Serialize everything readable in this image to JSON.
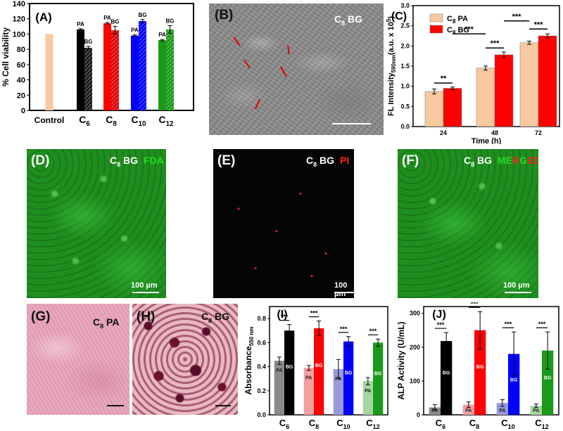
{
  "chart_data": [
    {
      "panel": "(A)",
      "type": "bar",
      "ylabel": "% Cell viability",
      "ylim": [
        0,
        140
      ],
      "yticks": [
        0,
        20,
        40,
        60,
        80,
        100,
        120,
        140
      ],
      "groups": [
        {
          "label": "Control",
          "bars": [
            {
              "value": 100,
              "err": 0,
              "label": "",
              "color": "#f8c9a0",
              "hatch": false
            }
          ]
        },
        {
          "label": "C6",
          "base": "C",
          "sub": "6",
          "bars": [
            {
              "value": 106,
              "err": 1,
              "label": "PA",
              "color": "#000000",
              "hatch": false
            },
            {
              "value": 82,
              "err": 2,
              "label": "BG",
              "color": "#1a1a1a",
              "hatch": true
            }
          ]
        },
        {
          "label": "C8",
          "base": "C",
          "sub": "8",
          "bars": [
            {
              "value": 114,
              "err": 1,
              "label": "PA",
              "color": "#ff0000",
              "hatch": false
            },
            {
              "value": 105,
              "err": 5,
              "label": "BG",
              "color": "#e00000",
              "hatch": true
            }
          ]
        },
        {
          "label": "C10",
          "base": "C",
          "sub": "10",
          "bars": [
            {
              "value": 98,
              "err": 1,
              "label": "PA",
              "color": "#0000ff",
              "hatch": false
            },
            {
              "value": 117,
              "err": 2,
              "label": "BG",
              "color": "#0000ff",
              "hatch": true
            }
          ]
        },
        {
          "label": "C12",
          "base": "C",
          "sub": "12",
          "bars": [
            {
              "value": 92,
              "err": 1,
              "label": "PA",
              "color": "#1a9a1a",
              "hatch": false
            },
            {
              "value": 106,
              "err": 5,
              "label": "BG",
              "color": "#1a9a1a",
              "hatch": true
            }
          ]
        }
      ]
    },
    {
      "panel": "(C)",
      "type": "bar",
      "ylabel_main": "FL Intensity",
      "ylabel_sub": "590nm",
      "ylabel_unit": "(a.u. x 10",
      "ylabel_exp": "5",
      "ylabel_close": ")",
      "xlabel": "Time (h)",
      "ylim": [
        0,
        3.0
      ],
      "yticks": [
        "0.0",
        "0.5",
        "1.0",
        "1.5",
        "2.0",
        "2.5",
        "3.0"
      ],
      "categories": [
        "24",
        "48",
        "72"
      ],
      "series": [
        {
          "name": "C8 PA",
          "base": "C",
          "sub": "8",
          "suffix": " PA",
          "color": "#f8c9a0",
          "values": [
            0.87,
            1.45,
            2.08
          ],
          "err": [
            0.06,
            0.05,
            0.04
          ]
        },
        {
          "name": "C8 BG",
          "base": "C",
          "sub": "8",
          "suffix": " BG",
          "color": "#ff0000",
          "values": [
            0.95,
            1.78,
            2.25
          ],
          "err": [
            0.03,
            0.07,
            0.05
          ]
        }
      ],
      "significance": [
        {
          "from": [
            0,
            0
          ],
          "to": [
            0,
            1
          ],
          "y": 1.08,
          "label": "**"
        },
        {
          "from": [
            0,
            1
          ],
          "to": [
            1,
            0
          ],
          "y": 2.3,
          "label": "***"
        },
        {
          "from": [
            1,
            0
          ],
          "to": [
            1,
            1
          ],
          "y": 1.95,
          "label": "***"
        },
        {
          "from": [
            1,
            1
          ],
          "to": [
            2,
            0
          ],
          "y": 2.62,
          "label": "***"
        },
        {
          "from": [
            2,
            0
          ],
          "to": [
            2,
            1
          ],
          "y": 2.42,
          "label": "***"
        }
      ]
    },
    {
      "panel": "(I)",
      "type": "bar",
      "ylabel_main": "Absorbance",
      "ylabel_sub": "550 nm",
      "ylim": [
        0,
        0.9
      ],
      "yticks": [
        "0.0",
        "0.2",
        "0.4",
        "0.6",
        "0.8"
      ],
      "groups": [
        {
          "label": "C6",
          "base": "C",
          "sub": "6",
          "pa": 0.45,
          "pa_err": 0.03,
          "bg": 0.7,
          "bg_err": 0.05,
          "pa_color": "#8a8a8a",
          "bg_color": "#000000"
        },
        {
          "label": "C8",
          "base": "C",
          "sub": "8",
          "pa": 0.39,
          "pa_err": 0.02,
          "bg": 0.72,
          "bg_err": 0.06,
          "pa_color": "#f4a0a0",
          "bg_color": "#ff0000"
        },
        {
          "label": "C10",
          "base": "C",
          "sub": "10",
          "pa": 0.38,
          "pa_err": 0.08,
          "bg": 0.61,
          "bg_err": 0.04,
          "pa_color": "#9a9ad8",
          "bg_color": "#0000ff"
        },
        {
          "label": "C12",
          "base": "C",
          "sub": "12",
          "pa": 0.28,
          "pa_err": 0.03,
          "bg": 0.6,
          "bg_err": 0.03,
          "pa_color": "#a6d6a0",
          "bg_color": "#1a9a1a"
        }
      ],
      "pa_label": "PA",
      "bg_label": "BG",
      "sig_label": "***"
    },
    {
      "panel": "(J)",
      "type": "bar",
      "ylabel": "ALP Activity (U/mL)",
      "ylim": [
        0,
        320
      ],
      "yticks": [
        "0",
        "100",
        "200",
        "300"
      ],
      "groups": [
        {
          "label": "C6",
          "base": "C",
          "sub": "6",
          "pa": 22,
          "pa_err": 8,
          "bg": 218,
          "bg_err": 25,
          "pa_color": "#8a8a8a",
          "bg_color": "#000000"
        },
        {
          "label": "C8",
          "base": "C",
          "sub": "8",
          "pa": 30,
          "pa_err": 8,
          "bg": 250,
          "bg_err": 55,
          "pa_color": "#f4a0a0",
          "bg_color": "#ff0000"
        },
        {
          "label": "C10",
          "base": "C",
          "sub": "10",
          "pa": 35,
          "pa_err": 10,
          "bg": 180,
          "bg_err": 65,
          "pa_color": "#9a9ad8",
          "bg_color": "#0000ff"
        },
        {
          "label": "C12",
          "base": "C",
          "sub": "12",
          "pa": 27,
          "pa_err": 5,
          "bg": 190,
          "bg_err": 55,
          "pa_color": "#a6d6a0",
          "bg_color": "#1a9a1a"
        }
      ],
      "pa_label": "PA",
      "bg_label": "BG",
      "sig_label": "***"
    }
  ],
  "micrographs": {
    "B": {
      "label": "(B)",
      "tag_base": "C",
      "tag_sub": "8",
      "tag_suffix": " BG"
    },
    "D": {
      "label": "(D)",
      "tag_base": "C",
      "tag_sub": "8",
      "tag_suffix": " BG",
      "stain": "FDA",
      "scale": "100 µm"
    },
    "E": {
      "label": "(E)",
      "tag_base": "C",
      "tag_sub": "8",
      "tag_suffix": " BG",
      "stain": "PI",
      "scale": "100 µm"
    },
    "F": {
      "label": "(F)",
      "tag_base": "C",
      "tag_sub": "8",
      "tag_suffix": " BG",
      "stain_letters": [
        "M",
        "E",
        "R",
        "G",
        "E",
        "D"
      ],
      "scale": "100 µm"
    },
    "G": {
      "label": "(G)",
      "tag_base": "C",
      "tag_sub": "8",
      "tag_suffix": " PA"
    },
    "H": {
      "label": "(H)",
      "tag_base": "C",
      "tag_sub": "8",
      "tag_suffix": " BG"
    }
  },
  "colors": {
    "fda_green": "#2db82d",
    "pi_red": "#ff2020",
    "merged_green": "#22cc22",
    "merged_red": "#ff2020"
  }
}
